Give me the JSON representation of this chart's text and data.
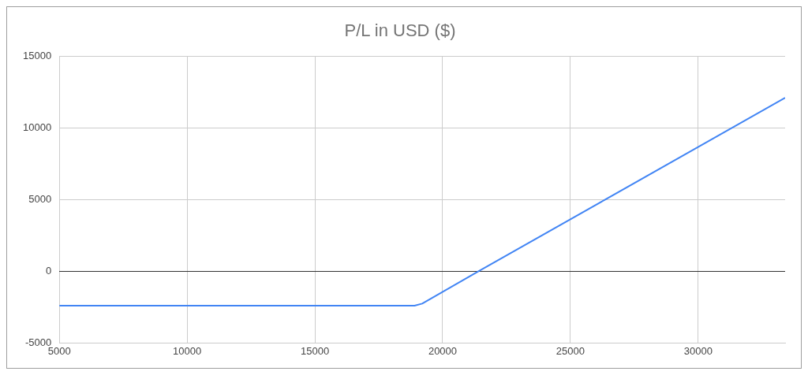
{
  "chart_data": {
    "type": "line",
    "title": "P/L in USD ($)",
    "x": [
      5000,
      18900,
      19200,
      21400,
      33400
    ],
    "series": [
      {
        "color": "#4285f4",
        "values": [
          -2400,
          -2400,
          -2250,
          0,
          12100
        ]
      }
    ],
    "xlim": [
      5000,
      33400
    ],
    "xticks": [
      5000,
      10000,
      15000,
      20000,
      25000,
      30000
    ],
    "ylim": [
      -5000,
      15000
    ],
    "yticks": [
      -5000,
      0,
      5000,
      10000,
      15000
    ],
    "grid": true,
    "legend": false,
    "marker": "none",
    "line_style": "solid"
  }
}
